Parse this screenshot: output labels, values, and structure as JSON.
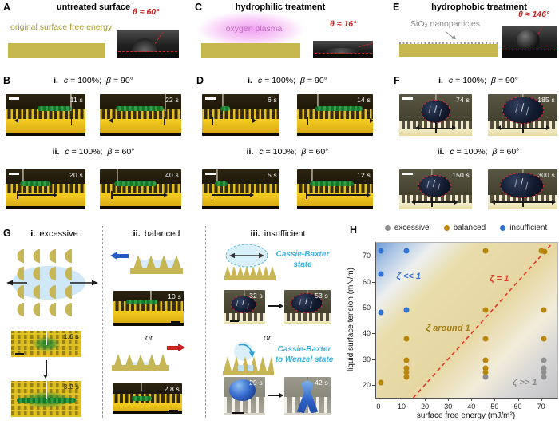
{
  "panels": {
    "A": {
      "label": "A",
      "title": "untreated surface",
      "note": "original surface free energy",
      "angle": "θ ≈ 60°"
    },
    "B": {
      "label": "B",
      "i": {
        "marker": "i.",
        "cond": [
          "c",
          "= 100%;",
          "β",
          "= 90°"
        ],
        "times": [
          "11 s",
          "22 s"
        ]
      },
      "ii": {
        "marker": "ii.",
        "cond": [
          "c",
          "= 100%;",
          "β",
          "= 60°"
        ],
        "times": [
          "20 s",
          "40 s"
        ]
      }
    },
    "C": {
      "label": "C",
      "title": "hydrophilic treatment",
      "note": "oxygen plasma",
      "angle": "θ ≈ 16°"
    },
    "D": {
      "label": "D",
      "i": {
        "marker": "i.",
        "cond": [
          "c",
          "= 100%;",
          "β",
          "= 90°"
        ],
        "times": [
          "6 s",
          "14 s"
        ]
      },
      "ii": {
        "marker": "ii.",
        "cond": [
          "c",
          "= 100%;",
          "β",
          "= 60°"
        ],
        "times": [
          "5 s",
          "12 s"
        ]
      }
    },
    "E": {
      "label": "E",
      "title": "hydrophobic treatment",
      "note": "SiO₂ nanoparticles",
      "angle": "θ ≈ 146°"
    },
    "F": {
      "label": "F",
      "i": {
        "marker": "i.",
        "cond": [
          "c",
          "= 100%;",
          "β",
          "= 90°"
        ],
        "times": [
          "74 s",
          "185 s"
        ]
      },
      "ii": {
        "marker": "ii.",
        "cond": [
          "c",
          "= 100%;",
          "β",
          "= 60°"
        ],
        "times": [
          "150 s",
          "300 s"
        ]
      }
    },
    "G": {
      "label": "G",
      "i": {
        "marker": "i.",
        "title": "excessive",
        "times": [
          "1.6 s",
          "3.2 s"
        ]
      },
      "ii": {
        "marker": "ii.",
        "title": "balanced",
        "or": "or",
        "times": [
          "10 s",
          "2.8 s"
        ]
      },
      "iii": {
        "marker": "iii.",
        "title": "insufficient",
        "or": "or",
        "state1": "Cassie-Baxter state",
        "state2": "Cassie-Baxter to Wenzel state",
        "times1": [
          "32 s",
          "53 s"
        ],
        "times2": [
          "29 s",
          "42 s"
        ]
      }
    },
    "H": {
      "label": "H"
    }
  },
  "chart_data": {
    "type": "scatter",
    "xlabel": "surface free energy (mJ/m²)",
    "ylabel": "liquid surface tension (mN/m)",
    "xlim": [
      -1,
      77
    ],
    "ylim": [
      15,
      75
    ],
    "xticks": [
      0,
      10,
      20,
      30,
      40,
      50,
      60,
      70
    ],
    "yticks": [
      20,
      30,
      40,
      50,
      60,
      70
    ],
    "legend": [
      {
        "label": "excessive",
        "color": "#8f8f8f"
      },
      {
        "label": "balanced",
        "color": "#b8860b"
      },
      {
        "label": "insufficient",
        "color": "#2f72d2"
      }
    ],
    "series": [
      {
        "name": "excessive",
        "color": "#8f8f8f",
        "points": [
          [
            46,
            23
          ],
          [
            71,
            29.5
          ],
          [
            71,
            26.5
          ],
          [
            71,
            25
          ],
          [
            71,
            23
          ]
        ]
      },
      {
        "name": "balanced",
        "color": "#b8860b",
        "points": [
          [
            1,
            21
          ],
          [
            12,
            38
          ],
          [
            12,
            29.5
          ],
          [
            12,
            26.5
          ],
          [
            12,
            25
          ],
          [
            12,
            23
          ],
          [
            46,
            72
          ],
          [
            46,
            49
          ],
          [
            46,
            38
          ],
          [
            46,
            29.5
          ],
          [
            46,
            26.5
          ],
          [
            46,
            25
          ],
          [
            70,
            72
          ],
          [
            71.5,
            71.5
          ],
          [
            71,
            49
          ],
          [
            71,
            38
          ]
        ]
      },
      {
        "name": "insufficient",
        "color": "#2f72d2",
        "points": [
          [
            1,
            72
          ],
          [
            1,
            63
          ],
          [
            1,
            48
          ],
          [
            12,
            72
          ],
          [
            12,
            49
          ]
        ]
      }
    ],
    "ref_line": {
      "label": "ζ = 1",
      "x": [
        15,
        75
      ],
      "y": [
        15,
        75
      ],
      "color": "#e03a2a",
      "style": "dashed"
    },
    "annotations": [
      {
        "text": "ζ << 1",
        "x": 13,
        "y": 62,
        "color": "#2f72d2"
      },
      {
        "text": "ζ = 1",
        "x": 52,
        "y": 61,
        "color": "#e03a2a"
      },
      {
        "text": "ζ around 1",
        "x": 30,
        "y": 42,
        "color": "#a07d15"
      },
      {
        "text": "ζ >> 1",
        "x": 63,
        "y": 21,
        "color": "#8a8a8a"
      }
    ]
  }
}
